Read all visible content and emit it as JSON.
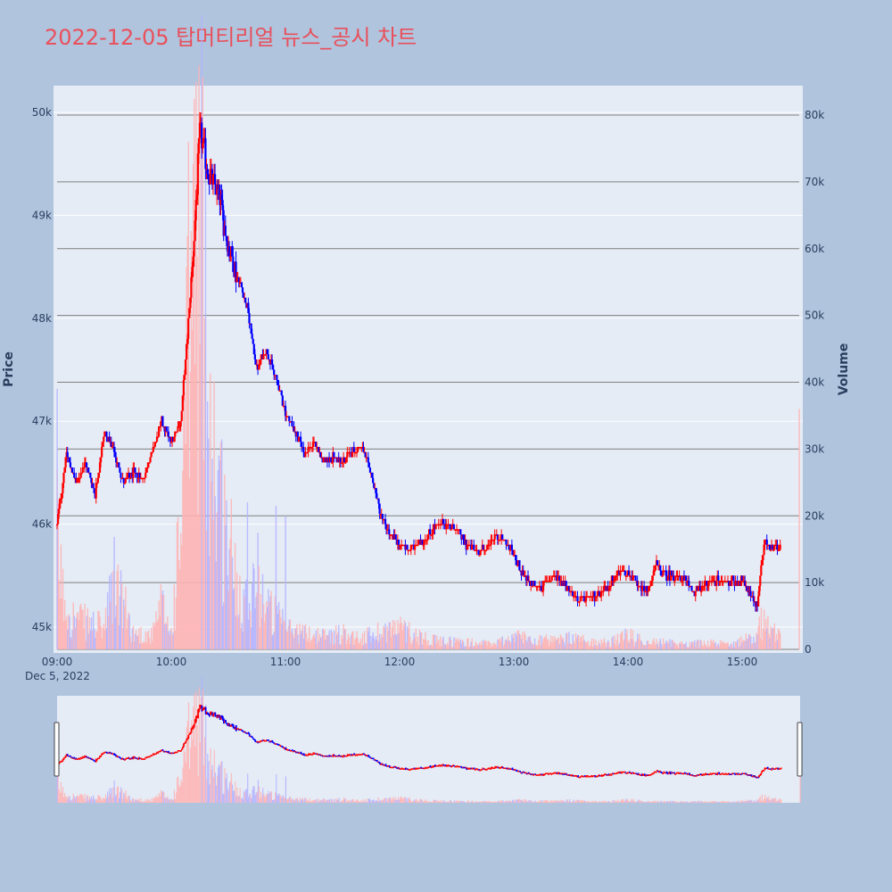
{
  "chart_data": {
    "type": "candlestick",
    "title": "2022-12-05 탑머티리얼 뉴스_공시 차트",
    "ylabel_left": "Price",
    "ylabel_right": "Volume",
    "x_tick_labels": [
      "09:00",
      "10:00",
      "11:00",
      "12:00",
      "13:00",
      "14:00",
      "15:00"
    ],
    "x_date_label": "Dec 5, 2022",
    "price_tick_labels": [
      "45k",
      "46k",
      "47k",
      "48k",
      "49k",
      "50k"
    ],
    "volume_tick_labels": [
      "0",
      "10k",
      "20k",
      "30k",
      "40k",
      "50k",
      "60k",
      "70k",
      "80k"
    ],
    "price_range": [
      44800,
      50200
    ],
    "volume_range": [
      0,
      81000
    ],
    "time_range": [
      "09:00",
      "15:30"
    ],
    "up_color": "#ff0000",
    "down_color": "#0000ff",
    "rangeslider": true,
    "price_path": [
      [
        "09:00",
        46000
      ],
      [
        "09:05",
        46700
      ],
      [
        "09:10",
        46400
      ],
      [
        "09:15",
        46600
      ],
      [
        "09:20",
        46300
      ],
      [
        "09:25",
        46900
      ],
      [
        "09:30",
        46700
      ],
      [
        "09:35",
        46400
      ],
      [
        "09:40",
        46500
      ],
      [
        "09:45",
        46450
      ],
      [
        "09:50",
        46700
      ],
      [
        "09:55",
        47000
      ],
      [
        "10:00",
        46800
      ],
      [
        "10:05",
        47000
      ],
      [
        "10:10",
        48200
      ],
      [
        "10:12",
        48800
      ],
      [
        "10:15",
        49800
      ],
      [
        "10:20",
        49400
      ],
      [
        "10:25",
        49200
      ],
      [
        "10:30",
        48700
      ],
      [
        "10:35",
        48400
      ],
      [
        "10:40",
        48100
      ],
      [
        "10:45",
        47500
      ],
      [
        "10:50",
        47700
      ],
      [
        "10:55",
        47400
      ],
      [
        "11:00",
        47100
      ],
      [
        "11:05",
        46900
      ],
      [
        "11:10",
        46700
      ],
      [
        "11:15",
        46800
      ],
      [
        "11:20",
        46600
      ],
      [
        "11:25",
        46650
      ],
      [
        "11:30",
        46600
      ],
      [
        "11:35",
        46700
      ],
      [
        "11:40",
        46750
      ],
      [
        "11:45",
        46500
      ],
      [
        "11:50",
        46100
      ],
      [
        "11:55",
        45900
      ],
      [
        "12:00",
        45800
      ],
      [
        "12:05",
        45750
      ],
      [
        "12:10",
        45800
      ],
      [
        "12:15",
        45900
      ],
      [
        "12:20",
        46000
      ],
      [
        "12:25",
        46000
      ],
      [
        "12:30",
        45950
      ],
      [
        "12:35",
        45800
      ],
      [
        "12:40",
        45750
      ],
      [
        "12:45",
        45750
      ],
      [
        "12:50",
        45900
      ],
      [
        "12:55",
        45850
      ],
      [
        "13:00",
        45700
      ],
      [
        "13:05",
        45500
      ],
      [
        "13:10",
        45400
      ],
      [
        "13:15",
        45400
      ],
      [
        "13:20",
        45500
      ],
      [
        "13:25",
        45450
      ],
      [
        "13:30",
        45350
      ],
      [
        "13:35",
        45250
      ],
      [
        "13:40",
        45300
      ],
      [
        "13:45",
        45300
      ],
      [
        "13:50",
        45400
      ],
      [
        "13:55",
        45550
      ],
      [
        "14:00",
        45550
      ],
      [
        "14:05",
        45400
      ],
      [
        "14:10",
        45350
      ],
      [
        "14:15",
        45600
      ],
      [
        "14:20",
        45500
      ],
      [
        "14:25",
        45500
      ],
      [
        "14:30",
        45450
      ],
      [
        "14:35",
        45350
      ],
      [
        "14:40",
        45400
      ],
      [
        "14:45",
        45450
      ],
      [
        "14:50",
        45450
      ],
      [
        "14:55",
        45450
      ],
      [
        "15:00",
        45450
      ],
      [
        "15:05",
        45300
      ],
      [
        "15:08",
        45200
      ],
      [
        "15:10",
        45600
      ],
      [
        "15:12",
        45850
      ],
      [
        "15:15",
        45750
      ],
      [
        "15:20",
        45800
      ]
    ],
    "volume_path": [
      [
        "09:00",
        20000
      ],
      [
        "09:03",
        10000
      ],
      [
        "09:08",
        6000
      ],
      [
        "09:15",
        5000
      ],
      [
        "09:25",
        4000
      ],
      [
        "09:30",
        13000
      ],
      [
        "09:40",
        3000
      ],
      [
        "09:50",
        2500
      ],
      [
        "09:55",
        8000
      ],
      [
        "10:00",
        3000
      ],
      [
        "10:05",
        22000
      ],
      [
        "10:10",
        65000
      ],
      [
        "10:15",
        80000
      ],
      [
        "10:20",
        45000
      ],
      [
        "10:25",
        28000
      ],
      [
        "10:30",
        20000
      ],
      [
        "10:35",
        12000
      ],
      [
        "10:40",
        9000
      ],
      [
        "10:45",
        14000
      ],
      [
        "10:50",
        8000
      ],
      [
        "10:55",
        6000
      ],
      [
        "11:00",
        4000
      ],
      [
        "11:05",
        3500
      ],
      [
        "11:10",
        3000
      ],
      [
        "11:20",
        2500
      ],
      [
        "11:30",
        3000
      ],
      [
        "11:40",
        2000
      ],
      [
        "11:50",
        3500
      ],
      [
        "12:00",
        4000
      ],
      [
        "12:10",
        2500
      ],
      [
        "12:20",
        1500
      ],
      [
        "12:30",
        1500
      ],
      [
        "12:40",
        1200
      ],
      [
        "12:50",
        1000
      ],
      [
        "13:00",
        2500
      ],
      [
        "13:10",
        2000
      ],
      [
        "13:20",
        1500
      ],
      [
        "13:30",
        2000
      ],
      [
        "13:40",
        1500
      ],
      [
        "13:50",
        1200
      ],
      [
        "14:00",
        2500
      ],
      [
        "14:10",
        1500
      ],
      [
        "14:20",
        1200
      ],
      [
        "14:30",
        1000
      ],
      [
        "14:40",
        1200
      ],
      [
        "14:50",
        1000
      ],
      [
        "15:00",
        1500
      ],
      [
        "15:05",
        2500
      ],
      [
        "15:10",
        5000
      ],
      [
        "15:15",
        3500
      ],
      [
        "15:20",
        2500
      ]
    ],
    "volume_spikes": [
      [
        "09:00",
        39000
      ],
      [
        "10:25",
        29000
      ],
      [
        "10:40",
        22000
      ],
      [
        "10:55",
        21500
      ],
      [
        "11:00",
        20000
      ],
      [
        "15:30",
        36000
      ]
    ]
  }
}
